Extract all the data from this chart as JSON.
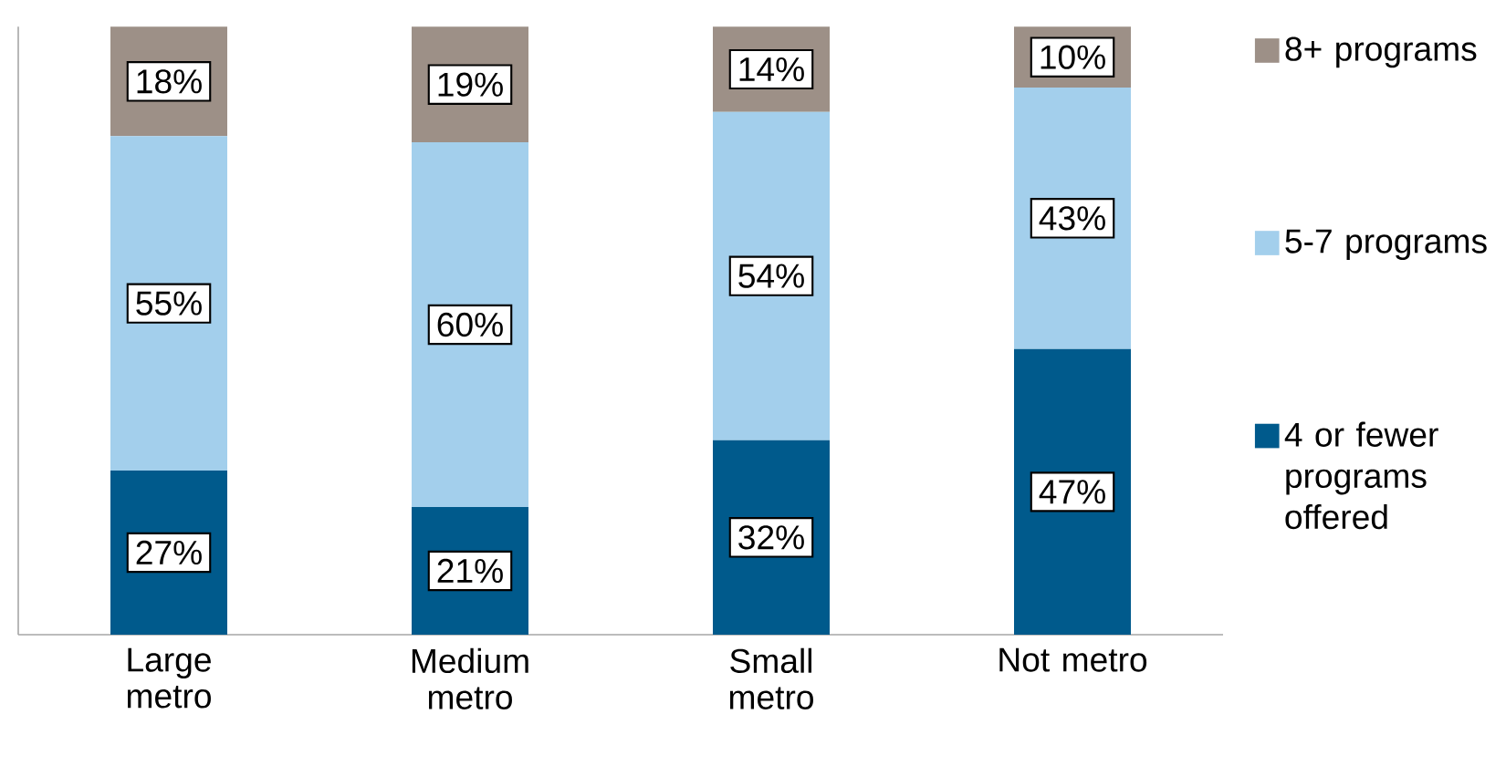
{
  "chart_data": {
    "type": "bar",
    "stacked": true,
    "legend": "right",
    "categories": [
      "Large metro",
      "Medium metro",
      "Small metro",
      "Not metro"
    ],
    "series": [
      {
        "name": "4 or fewer programs offered",
        "color": "#005a8c",
        "values": [
          27,
          21,
          32,
          47
        ],
        "value_labels": [
          "27%",
          "21%",
          "32%",
          "47%"
        ]
      },
      {
        "name": "5-7 programs",
        "color": "#a3cfec",
        "values": [
          55,
          60,
          54,
          43
        ],
        "value_labels": [
          "55%",
          "60%",
          "54%",
          "43%"
        ]
      },
      {
        "name": "8+ programs",
        "color": "#9d9087",
        "values": [
          18,
          19,
          14,
          10
        ],
        "value_labels": [
          "18%",
          "19%",
          "14%",
          "10%"
        ]
      }
    ]
  }
}
